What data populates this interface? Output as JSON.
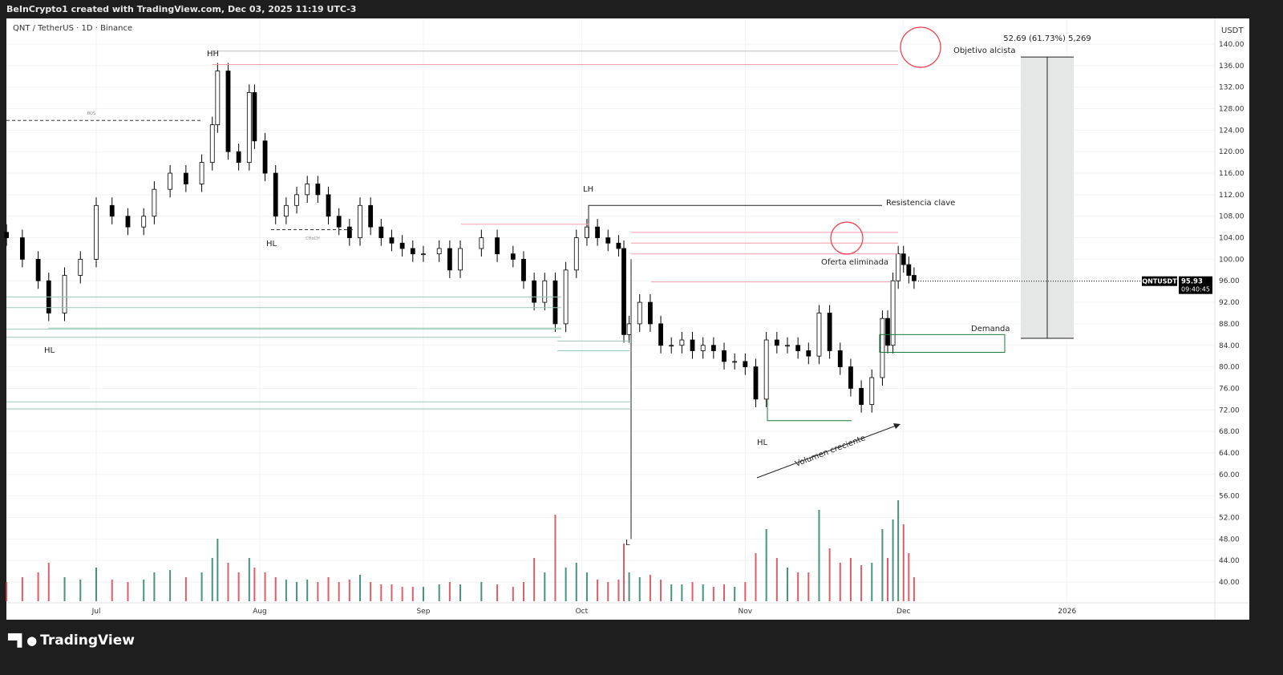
{
  "header": {
    "credit": "BeInCrypto1 created with TradingView.com, Dec 03, 2025 11:19 UTC-3",
    "symbol": "QNT / TetherUS · 1D · Binance"
  },
  "footer": {
    "brand": "TradingView",
    "logo_icon": "tradingview-logo-icon"
  },
  "chart_data": {
    "type": "candlestick",
    "currency": "USDT",
    "ylim": [
      38,
      142
    ],
    "y_ticks": [
      "140.00",
      "136.00",
      "132.00",
      "128.00",
      "124.00",
      "120.00",
      "116.00",
      "112.00",
      "108.00",
      "104.00",
      "100.00",
      "96.00",
      "92.00",
      "88.00",
      "84.00",
      "80.00",
      "76.00",
      "72.00",
      "68.00",
      "64.00",
      "60.00",
      "56.00",
      "52.00",
      "48.00",
      "44.00",
      "40.00"
    ],
    "x_ticks": [
      {
        "label": "Jul",
        "date": "2025-07-01"
      },
      {
        "label": "Aug",
        "date": "2025-08-01"
      },
      {
        "label": "Sep",
        "date": "2025-09-01"
      },
      {
        "label": "Oct",
        "date": "2025-10-01"
      },
      {
        "label": "Nov",
        "date": "2025-11-01"
      },
      {
        "label": "Dec",
        "date": "2025-12-01"
      },
      {
        "label": "2026",
        "date": "2026-01-01"
      }
    ],
    "up_color": "#ffffff",
    "down_color": "#000000",
    "vol_up_color": "#26806a",
    "vol_down_color": "#d9414e",
    "candles": [
      [
        "2025-06-14",
        104,
        8
      ],
      [
        "2025-06-17",
        100,
        10
      ],
      [
        "2025-06-20",
        96,
        12
      ],
      [
        "2025-06-22",
        90,
        16
      ],
      [
        "2025-06-25",
        97,
        10
      ],
      [
        "2025-06-28",
        100,
        9
      ],
      [
        "2025-07-01",
        110,
        14
      ],
      [
        "2025-07-04",
        108,
        9
      ],
      [
        "2025-07-07",
        106,
        8
      ],
      [
        "2025-07-10",
        108,
        9
      ],
      [
        "2025-07-12",
        113,
        12
      ],
      [
        "2025-07-15",
        116,
        13
      ],
      [
        "2025-07-18",
        114,
        10
      ],
      [
        "2025-07-21",
        118,
        12
      ],
      [
        "2025-07-23",
        125,
        18
      ],
      [
        "2025-07-24",
        135,
        26
      ],
      [
        "2025-07-26",
        120,
        16
      ],
      [
        "2025-07-28",
        118,
        12
      ],
      [
        "2025-07-30",
        131,
        18
      ],
      [
        "2025-07-31",
        122,
        14
      ],
      [
        "2025-08-02",
        116,
        12
      ],
      [
        "2025-08-04",
        108,
        10
      ],
      [
        "2025-08-06",
        110,
        9
      ],
      [
        "2025-08-08",
        112,
        8
      ],
      [
        "2025-08-10",
        114,
        9
      ],
      [
        "2025-08-12",
        112,
        8
      ],
      [
        "2025-08-14",
        108,
        10
      ],
      [
        "2025-08-16",
        106,
        8
      ],
      [
        "2025-08-18",
        104,
        9
      ],
      [
        "2025-08-20",
        110,
        11
      ],
      [
        "2025-08-22",
        106,
        8
      ],
      [
        "2025-08-24",
        104,
        7
      ],
      [
        "2025-08-26",
        103,
        7
      ],
      [
        "2025-08-28",
        102,
        6
      ],
      [
        "2025-08-30",
        101,
        6
      ],
      [
        "2025-09-01",
        101,
        6
      ],
      [
        "2025-09-04",
        102,
        7
      ],
      [
        "2025-09-06",
        98,
        8
      ],
      [
        "2025-09-08",
        102,
        7
      ],
      [
        "2025-09-12",
        104,
        8
      ],
      [
        "2025-09-15",
        101,
        7
      ],
      [
        "2025-09-18",
        100,
        6
      ],
      [
        "2025-09-20",
        96,
        8
      ],
      [
        "2025-09-22",
        92,
        18
      ],
      [
        "2025-09-24",
        96,
        12
      ],
      [
        "2025-09-26",
        88,
        36
      ],
      [
        "2025-09-28",
        98,
        14
      ],
      [
        "2025-09-30",
        104,
        16
      ],
      [
        "2025-10-02",
        106,
        12
      ],
      [
        "2025-10-04",
        104,
        9
      ],
      [
        "2025-10-06",
        103,
        8
      ],
      [
        "2025-10-08",
        102,
        9
      ],
      [
        "2025-10-09",
        86,
        24
      ],
      [
        "2025-10-10",
        88,
        12
      ],
      [
        "2025-10-12",
        92,
        10
      ],
      [
        "2025-10-14",
        88,
        11
      ],
      [
        "2025-10-16",
        84,
        9
      ],
      [
        "2025-10-18",
        84,
        7
      ],
      [
        "2025-10-20",
        85,
        7
      ],
      [
        "2025-10-22",
        83,
        8
      ],
      [
        "2025-10-24",
        84,
        7
      ],
      [
        "2025-10-26",
        83,
        6
      ],
      [
        "2025-10-28",
        81,
        7
      ],
      [
        "2025-10-30",
        81,
        6
      ],
      [
        "2025-11-01",
        80,
        8
      ],
      [
        "2025-11-03",
        74,
        20
      ],
      [
        "2025-11-05",
        85,
        30
      ],
      [
        "2025-11-07",
        84,
        18
      ],
      [
        "2025-11-09",
        84,
        14
      ],
      [
        "2025-11-11",
        83,
        12
      ],
      [
        "2025-11-13",
        82,
        12
      ],
      [
        "2025-11-15",
        90,
        38
      ],
      [
        "2025-11-17",
        83,
        22
      ],
      [
        "2025-11-19",
        80,
        16
      ],
      [
        "2025-11-21",
        76,
        18
      ],
      [
        "2025-11-23",
        73,
        15
      ],
      [
        "2025-11-25",
        78,
        16
      ],
      [
        "2025-11-27",
        89,
        30
      ],
      [
        "2025-11-28",
        84,
        18
      ],
      [
        "2025-11-29",
        96,
        34
      ],
      [
        "2025-11-30",
        101,
        42
      ],
      [
        "2025-12-01",
        99,
        32
      ],
      [
        "2025-12-02",
        97,
        20
      ],
      [
        "2025-12-03",
        96,
        10
      ]
    ],
    "last_price": {
      "symbol": "QNTUSDT",
      "price": "95.93",
      "countdown": "09:40:45"
    },
    "annotations": {
      "hh": "HH",
      "hl1": "HL",
      "hl2": "HL",
      "hl3": "HL",
      "lh": "LH",
      "l": "L",
      "bos": "BOS",
      "choch": "CHoCH",
      "resistance": "Resistencia clave",
      "offer": "Oferta eliminada",
      "demand": "Demanda",
      "volume": "Volumen creciente",
      "target": "Objetivo alcista",
      "measure": "52.69 (61.73%) 5,269"
    }
  }
}
